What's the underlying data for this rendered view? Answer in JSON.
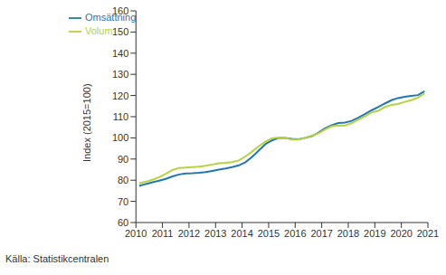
{
  "chart_data": {
    "type": "line",
    "y_label": "Index (2015=100)",
    "annotations": [
      "Källa: Statistikcentralen"
    ],
    "x": [
      2010.125,
      2010.375,
      2010.625,
      2010.875,
      2011.125,
      2011.375,
      2011.625,
      2011.875,
      2012.125,
      2012.375,
      2012.625,
      2012.875,
      2013.125,
      2013.375,
      2013.625,
      2013.875,
      2014.125,
      2014.375,
      2014.625,
      2014.875,
      2015.125,
      2015.375,
      2015.625,
      2015.875,
      2016.125,
      2016.375,
      2016.625,
      2016.875,
      2017.125,
      2017.375,
      2017.625,
      2017.875,
      2018.125,
      2018.375,
      2018.625,
      2018.875,
      2019.125,
      2019.375,
      2019.625,
      2019.875,
      2020.125,
      2020.375,
      2020.625,
      2020.875
    ],
    "series": [
      {
        "name": "Omsättning",
        "color": "#1f77b4",
        "values": [
          77.3,
          78.2,
          79.0,
          79.8,
          80.6,
          81.8,
          82.7,
          83.2,
          83.3,
          83.5,
          83.8,
          84.4,
          85.0,
          85.5,
          86.2,
          87.0,
          88.5,
          91.0,
          94.0,
          97.0,
          98.8,
          100.0,
          100.0,
          99.5,
          99.3,
          100.0,
          100.8,
          102.5,
          104.5,
          106.0,
          107.0,
          107.2,
          108.0,
          109.5,
          111.2,
          113.0,
          114.5,
          116.2,
          117.8,
          118.8,
          119.4,
          119.8,
          120.2,
          122.0
        ]
      },
      {
        "name": "Volum",
        "color": "#b5d33d",
        "values": [
          78.5,
          79.3,
          80.2,
          81.4,
          83.0,
          84.8,
          85.8,
          86.0,
          86.2,
          86.4,
          86.8,
          87.4,
          88.0,
          88.2,
          88.5,
          89.3,
          91.2,
          93.5,
          96.0,
          98.2,
          99.8,
          100.2,
          100.0,
          99.2,
          99.2,
          100.0,
          101.0,
          102.2,
          104.0,
          105.5,
          105.7,
          105.8,
          107.0,
          108.6,
          110.2,
          112.0,
          112.8,
          114.5,
          115.6,
          116.0,
          117.0,
          117.8,
          119.0,
          121.0
        ]
      }
    ],
    "xlim": [
      2010,
      2021
    ],
    "xticks": [
      2010,
      2011,
      2012,
      2013,
      2014,
      2015,
      2016,
      2017,
      2018,
      2019,
      2020,
      2021
    ],
    "ylim": [
      60,
      160
    ],
    "yticks": [
      60,
      70,
      80,
      90,
      100,
      110,
      120,
      130,
      140,
      150,
      160
    ],
    "grid": false,
    "legend": "upper left"
  }
}
